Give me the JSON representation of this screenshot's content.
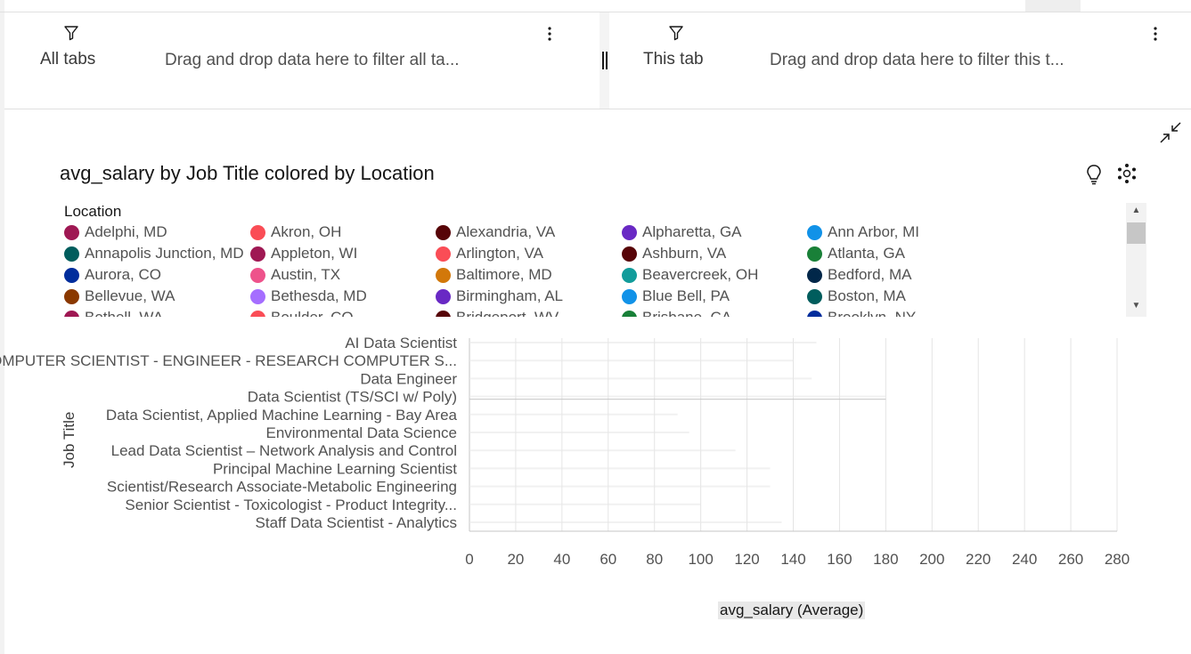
{
  "filters": {
    "all_tabs_label": "All tabs",
    "all_tabs_drop": "Drag and drop data here to filter all ta...",
    "this_tab_label": "This tab",
    "this_tab_drop": "Drag and drop data here to filter this t..."
  },
  "icons": {
    "filter": "filter-icon",
    "more": "overflow-menu-icon",
    "collapse": "minimize-icon",
    "insight": "lightbulb-icon",
    "settings": "visualization-settings-icon"
  },
  "legend": {
    "title": "Location",
    "items": [
      {
        "label": "Adelphi, MD",
        "color": "#9f1853"
      },
      {
        "label": "Akron, OH",
        "color": "#fa4d56"
      },
      {
        "label": "Alexandria, VA",
        "color": "#570408"
      },
      {
        "label": "Alpharetta, GA",
        "color": "#6929c4"
      },
      {
        "label": "Ann Arbor, MI",
        "color": "#1192e8"
      },
      {
        "label": "Annapolis Junction, MD",
        "color": "#005d5d"
      },
      {
        "label": "Appleton, WI",
        "color": "#9f1853"
      },
      {
        "label": "Arlington, VA",
        "color": "#fa4d56"
      },
      {
        "label": "Ashburn, VA",
        "color": "#570408"
      },
      {
        "label": "Atlanta, GA",
        "color": "#198038"
      },
      {
        "label": "Aurora, CO",
        "color": "#002d9c"
      },
      {
        "label": "Austin, TX",
        "color": "#ee538b"
      },
      {
        "label": "Baltimore, MD",
        "color": "#d2780a"
      },
      {
        "label": "Beavercreek, OH",
        "color": "#129c9b"
      },
      {
        "label": "Bedford, MA",
        "color": "#012749"
      },
      {
        "label": "Bellevue, WA",
        "color": "#8a3800"
      },
      {
        "label": "Bethesda, MD",
        "color": "#a56eff"
      },
      {
        "label": "Birmingham, AL",
        "color": "#6929c4"
      },
      {
        "label": "Blue Bell, PA",
        "color": "#1192e8"
      },
      {
        "label": "Boston, MA",
        "color": "#005d5d"
      },
      {
        "label": "Bothell, WA",
        "color": "#9f1853"
      },
      {
        "label": "Boulder, CO",
        "color": "#fa4d56"
      },
      {
        "label": "Bridgeport, WV",
        "color": "#570408"
      },
      {
        "label": "Brisbane, CA",
        "color": "#198038"
      },
      {
        "label": "Brooklyn, NY",
        "color": "#002d9c"
      }
    ]
  },
  "chart_data": {
    "type": "bar",
    "orientation": "horizontal",
    "title": "avg_salary by Job Title colored by Location",
    "xlabel": "avg_salary (Average)",
    "ylabel": "Job Title",
    "xlim": [
      0,
      280
    ],
    "xticks": [
      0,
      20,
      40,
      60,
      80,
      100,
      120,
      140,
      160,
      180,
      200,
      220,
      240,
      260,
      280
    ],
    "grid": true,
    "legend_position": "top",
    "categories": [
      "AI Data Scientist",
      "OMPUTER SCIENTIST - ENGINEER - RESEARCH COMPUTER S...",
      "Data Engineer",
      "Data Scientist (TS/SCI w/ Poly)",
      "Data Scientist, Applied Machine Learning - Bay Area",
      "Environmental Data Science",
      "Lead Data Scientist – Network Analysis and Control",
      "Principal Machine Learning Scientist",
      "Scientist/Research Associate-Metabolic Engineering",
      "Senior Scientist - Toxicologist - Product Integrity...",
      "Staff Data Scientist - Analytics"
    ],
    "values": [
      150,
      140,
      148,
      180,
      90,
      95,
      115,
      130,
      130,
      100,
      135
    ]
  }
}
